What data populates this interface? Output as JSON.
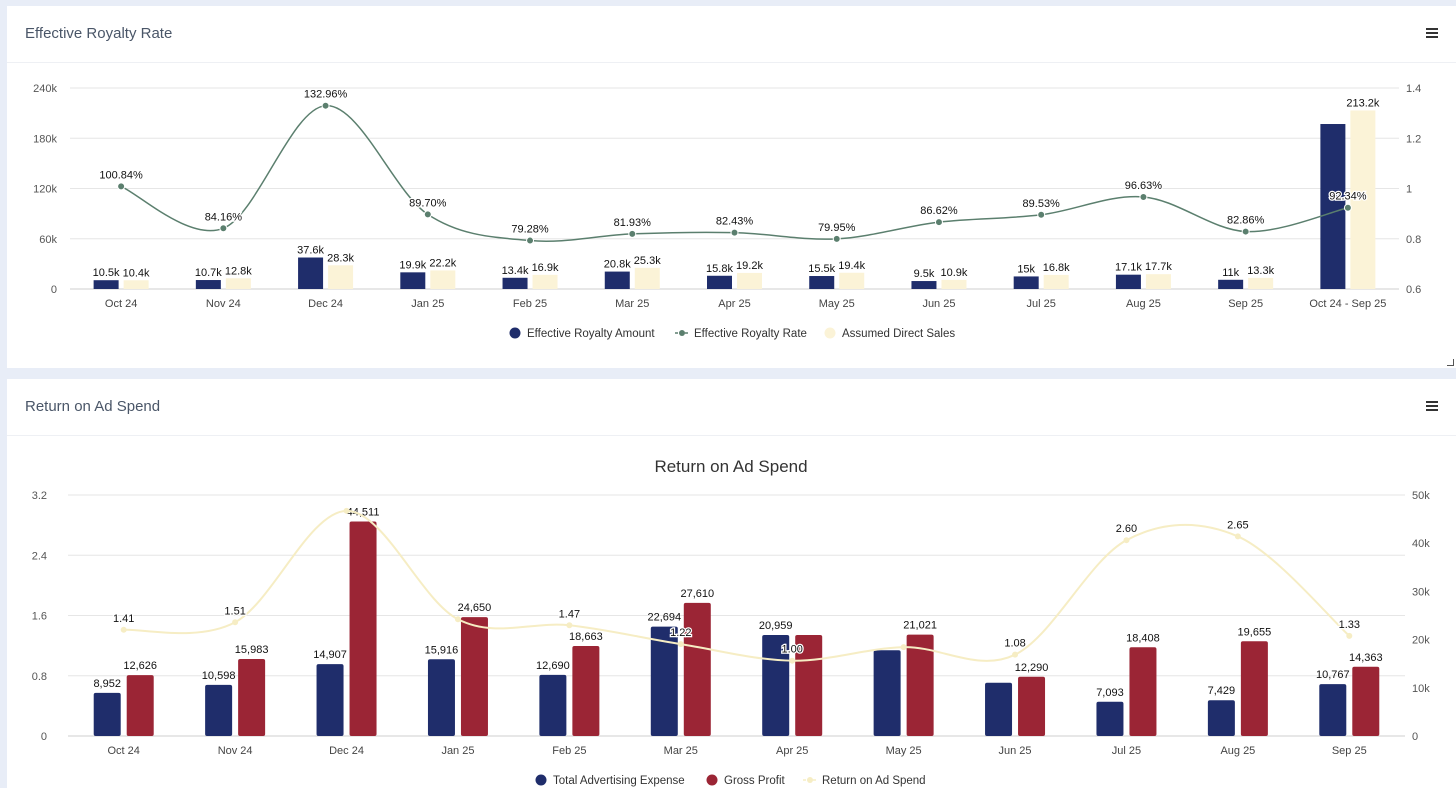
{
  "panels": [
    {
      "title": "Effective Royalty Rate"
    },
    {
      "title": "Return on Ad Spend"
    }
  ],
  "colors": {
    "navy": "#1f2d6b",
    "cream": "#fbf3d7",
    "green": "#5b7f6e",
    "crimson": "#9b2535",
    "yellow_line": "#f6edc4"
  },
  "chart_data": [
    {
      "type": "bar",
      "title": "",
      "categories": [
        "Oct 24",
        "Nov 24",
        "Dec 24",
        "Jan 25",
        "Feb 25",
        "Mar 25",
        "Apr 25",
        "May 25",
        "Jun 25",
        "Jul 25",
        "Aug 25",
        "Sep 25",
        "Oct 24 - Sep 25"
      ],
      "y_left": {
        "min": 0,
        "max": 240000,
        "ticks": [
          "0",
          "60k",
          "120k",
          "180k",
          "240k"
        ]
      },
      "y_right": {
        "min": 0.6,
        "max": 1.4,
        "ticks": [
          "0.6",
          "0.8",
          "1",
          "1.2",
          "1.4"
        ]
      },
      "series": [
        {
          "name": "Effective Royalty Amount",
          "kind": "bar",
          "axis": "left",
          "values": [
            10500,
            10700,
            37600,
            19900,
            13400,
            20800,
            15800,
            15500,
            9500,
            15000,
            17100,
            11000,
            197000
          ],
          "labels": [
            "10.5k",
            "10.7k",
            "37.6k",
            "19.9k",
            "13.4k",
            "20.8k",
            "15.8k",
            "15.5k",
            "9.5k",
            "15k",
            "17.1k",
            "11k",
            ""
          ]
        },
        {
          "name": "Effective Royalty Rate",
          "kind": "line",
          "axis": "right",
          "values": [
            1.0084,
            0.8416,
            1.3296,
            0.897,
            0.7928,
            0.8193,
            0.8243,
            0.7995,
            0.8662,
            0.8953,
            0.9663,
            0.8286,
            0.9234
          ],
          "labels": [
            "100.84%",
            "84.16%",
            "132.96%",
            "89.70%",
            "79.28%",
            "81.93%",
            "82.43%",
            "79.95%",
            "86.62%",
            "89.53%",
            "96.63%",
            "82.86%",
            "92.34%"
          ]
        },
        {
          "name": "Assumed Direct Sales",
          "kind": "bar",
          "axis": "left",
          "values": [
            10400,
            12800,
            28300,
            22200,
            16900,
            25300,
            19200,
            19400,
            10900,
            16800,
            17700,
            13300,
            213200
          ],
          "labels": [
            "10.4k",
            "12.8k",
            "28.3k",
            "22.2k",
            "16.9k",
            "25.3k",
            "19.2k",
            "19.4k",
            "10.9k",
            "16.8k",
            "17.7k",
            "13.3k",
            "213.2k"
          ]
        }
      ],
      "legend": [
        "Effective Royalty Amount",
        "Effective Royalty Rate",
        "Assumed Direct Sales"
      ]
    },
    {
      "type": "bar",
      "title": "Return on Ad Spend",
      "categories": [
        "Oct 24",
        "Nov 24",
        "Dec 24",
        "Jan 25",
        "Feb 25",
        "Mar 25",
        "Apr 25",
        "May 25",
        "Jun 25",
        "Jul 25",
        "Aug 25",
        "Sep 25"
      ],
      "y_left": {
        "min": 0,
        "max": 3.2,
        "ticks": [
          "0",
          "0.8",
          "1.6",
          "2.4",
          "3.2"
        ]
      },
      "y_right": {
        "min": 0,
        "max": 50000,
        "ticks": [
          "0",
          "10k",
          "20k",
          "30k",
          "40k",
          "50k"
        ]
      },
      "series": [
        {
          "name": "Total Advertising Expense",
          "kind": "bar",
          "axis": "right",
          "values": [
            8952,
            10598,
            14907,
            15916,
            12690,
            22694,
            20959,
            17800,
            11060,
            7093,
            7429,
            10767
          ],
          "labels": [
            "8,952",
            "10,598",
            "14,907",
            "15,916",
            "12,690",
            "22,694",
            "20,959",
            "",
            "",
            "7,093",
            "7,429",
            "10,767"
          ]
        },
        {
          "name": "Gross Profit",
          "kind": "bar",
          "axis": "right",
          "values": [
            12626,
            15983,
            44511,
            24650,
            18663,
            27610,
            20959,
            21021,
            12290,
            18408,
            19655,
            14363
          ],
          "labels": [
            "12,626",
            "15,983",
            "44,511",
            "24,650",
            "18,663",
            "27,610",
            "",
            "21,021",
            "12,290",
            "18,408",
            "19,655",
            "14,363"
          ]
        },
        {
          "name": "Return on Ad Spend",
          "kind": "line",
          "axis": "left",
          "values": [
            1.41,
            1.51,
            2.99,
            1.55,
            1.47,
            1.22,
            1.0,
            1.18,
            1.08,
            2.6,
            2.65,
            1.33
          ],
          "labels": [
            "1.41",
            "1.51",
            "",
            "",
            "1.47",
            "1.22",
            "1.00",
            "",
            "1.08",
            "2.60",
            "2.65",
            "1.33"
          ]
        }
      ],
      "legend": [
        "Total Advertising Expense",
        "Gross Profit",
        "Return on Ad Spend"
      ]
    }
  ]
}
